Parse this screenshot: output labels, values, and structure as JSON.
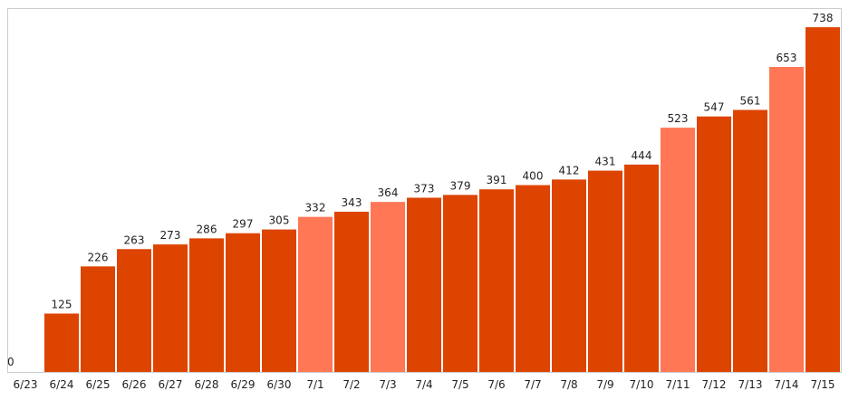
{
  "chart_data": {
    "type": "bar",
    "categories": [
      "6/23",
      "6/24",
      "6/25",
      "6/26",
      "6/27",
      "6/28",
      "6/29",
      "6/30",
      "7/1",
      "7/2",
      "7/3",
      "7/4",
      "7/5",
      "7/6",
      "7/7",
      "7/8",
      "7/9",
      "7/10",
      "7/11",
      "7/12",
      "7/13",
      "7/14",
      "7/15"
    ],
    "values": [
      0,
      125,
      226,
      263,
      273,
      286,
      297,
      305,
      332,
      343,
      364,
      373,
      379,
      391,
      400,
      412,
      431,
      444,
      523,
      547,
      561,
      653,
      738
    ],
    "highlight": [
      false,
      false,
      false,
      false,
      false,
      false,
      false,
      false,
      true,
      false,
      true,
      false,
      false,
      false,
      false,
      false,
      false,
      false,
      true,
      false,
      false,
      true,
      false
    ],
    "colors": {
      "primary": "#DD4400",
      "highlight": "#FF7755",
      "frame": "#cccccc",
      "text": "#222222"
    },
    "ylim": [
      0,
      775
    ],
    "grid": false,
    "title": "",
    "xlabel": "",
    "ylabel": ""
  }
}
